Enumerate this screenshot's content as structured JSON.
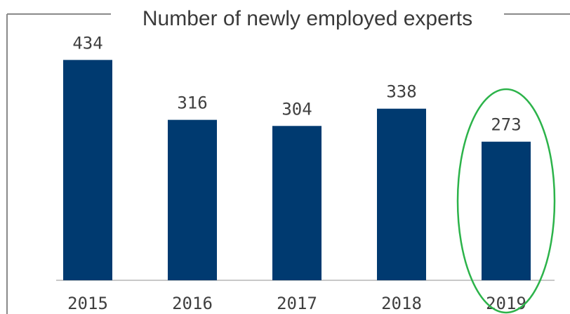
{
  "chart_data": {
    "type": "bar",
    "title": "Number of newly employed experts",
    "categories": [
      "2015",
      "2016",
      "2017",
      "2018",
      "2019"
    ],
    "values": [
      434,
      316,
      304,
      338,
      273
    ],
    "ylim": [
      0,
      440
    ],
    "xlabel": "",
    "ylabel": "",
    "grid": false,
    "legend": "none",
    "highlight": {
      "category": "2019",
      "shape": "ellipse"
    }
  },
  "colors": {
    "bar": "#003a70",
    "frame": "#8a8a8a",
    "baseline": "#c8c8c8",
    "highlight": "#2cb34a",
    "text": "#404040"
  }
}
